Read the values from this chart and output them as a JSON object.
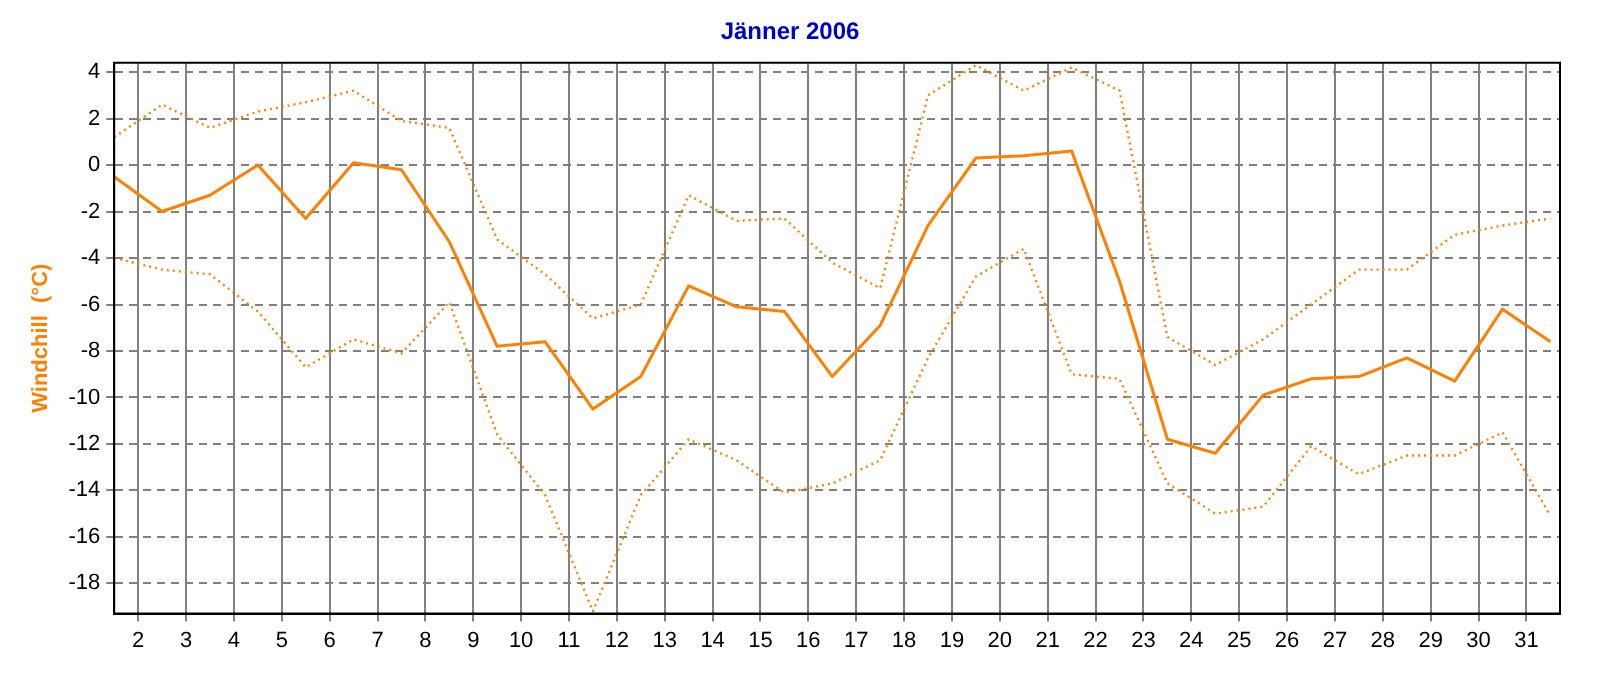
{
  "chart_data": {
    "type": "line",
    "title": "Jänner 2006",
    "ylabel": "Windchill  (°C)",
    "x": [
      1.5,
      2.5,
      3.5,
      4.5,
      5.5,
      6.5,
      7.5,
      8.5,
      9.5,
      10.5,
      11.5,
      12.5,
      13.5,
      14.5,
      15.5,
      16.5,
      17.5,
      18.5,
      19.5,
      20.5,
      21.5,
      22.5,
      23.5,
      24.5,
      25.5,
      26.5,
      27.5,
      28.5,
      29.5,
      30.5,
      31.5
    ],
    "series": [
      {
        "color": "#ff8000",
        "line_style": "dotted",
        "values": [
          1.2,
          2.6,
          1.6,
          2.3,
          2.7,
          3.2,
          1.9,
          1.6,
          -3.2,
          -4.7,
          -6.6,
          -6.0,
          -1.3,
          -2.4,
          -2.3,
          -4.2,
          -5.3,
          3.0,
          4.3,
          3.2,
          4.2,
          3.2,
          -7.4,
          -8.6,
          -7.5,
          -6.0,
          -4.5,
          -4.5,
          -3.0,
          -2.6,
          -2.3
        ]
      },
      {
        "color": "#ff8000",
        "line_style": "solid",
        "values": [
          -0.5,
          -2.0,
          -1.3,
          0.0,
          -2.3,
          0.1,
          -0.2,
          -3.3,
          -7.8,
          -7.6,
          -10.5,
          -9.1,
          -5.2,
          -6.1,
          -6.3,
          -9.1,
          -6.9,
          -2.6,
          0.3,
          0.4,
          0.6,
          -5.0,
          -11.8,
          -12.4,
          -9.9,
          -9.2,
          -9.1,
          -8.3,
          -9.3,
          -6.2,
          -7.6
        ]
      },
      {
        "color": "#ff8000",
        "line_style": "dotted",
        "values": [
          -4.0,
          -4.5,
          -4.7,
          -6.3,
          -8.7,
          -7.5,
          -8.1,
          -5.9,
          -11.6,
          -14.2,
          -19.2,
          -14.2,
          -11.8,
          -12.7,
          -14.1,
          -13.7,
          -12.7,
          -8.3,
          -4.8,
          -3.6,
          -9.0,
          -9.2,
          -13.7,
          -15.0,
          -14.7,
          -12.1,
          -13.3,
          -12.5,
          -12.5,
          -11.5,
          -15.1
        ]
      }
    ],
    "xlim": [
      1.5,
      31.7
    ],
    "xticks": [
      2,
      3,
      4,
      5,
      6,
      7,
      8,
      9,
      10,
      11,
      12,
      13,
      14,
      15,
      16,
      17,
      18,
      19,
      20,
      21,
      22,
      23,
      24,
      25,
      26,
      27,
      28,
      29,
      30,
      31
    ],
    "ylim": [
      -19.3,
      4.4
    ],
    "yticks": [
      -18,
      -16,
      -14,
      -12,
      -10,
      -8,
      -6,
      -4,
      -2,
      0,
      2,
      4
    ],
    "grid": true,
    "legend": false,
    "marker": "none"
  }
}
